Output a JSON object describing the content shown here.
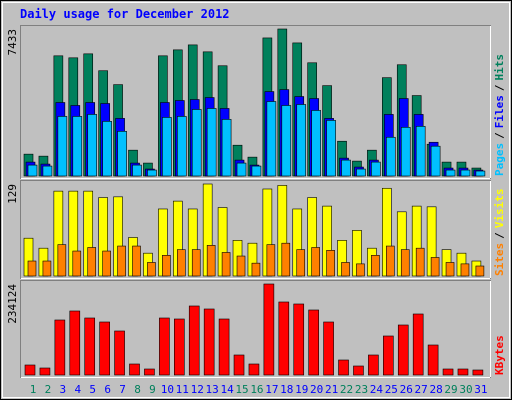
{
  "chart_data": {
    "type": "bar",
    "title": "Daily usage for December 2012",
    "categories": [
      "1",
      "2",
      "3",
      "4",
      "5",
      "6",
      "7",
      "8",
      "9",
      "10",
      "11",
      "12",
      "13",
      "14",
      "15",
      "16",
      "17",
      "18",
      "19",
      "20",
      "21",
      "22",
      "23",
      "24",
      "25",
      "26",
      "27",
      "28",
      "29",
      "30",
      "31"
    ],
    "category_color": "#0000ff",
    "highlight_color": "#00805c",
    "highlight_indices": [
      0,
      1,
      7,
      8,
      14,
      15,
      21,
      22,
      28,
      29
    ],
    "legend_separator": "/",
    "panels": [
      {
        "ylim": [
          0,
          7433
        ],
        "yticks": [
          7433
        ],
        "series": [
          {
            "name": "Hits",
            "color": "#00805c",
            "values": [
              1105,
              1004,
              6077,
              5976,
              6177,
              5323,
              4620,
              1306,
              653,
              6077,
              6378,
              6629,
              6278,
              5574,
              1557,
              954,
              6981,
              7433,
              6729,
              5725,
              4570,
              1758,
              753,
              1306,
              4972,
              5625,
              4068,
              1607,
              703,
              703,
              402
            ]
          },
          {
            "name": "Files",
            "color": "#0000ff",
            "values": [
              703,
              603,
              3716,
              3566,
              3716,
              3666,
              2913,
              653,
              352,
              3716,
              3817,
              3867,
              3967,
              3415,
              804,
              552,
              4269,
              4369,
              4018,
              3917,
              2913,
              904,
              452,
              804,
              3114,
              3917,
              3114,
              1707,
              402,
              402,
              301
            ]
          },
          {
            "name": "Pages",
            "color": "#00c0ff",
            "values": [
              552,
              502,
              3013,
              3013,
              3114,
              2762,
              2260,
              552,
              301,
              2963,
              3013,
              3365,
              3415,
              2863,
              653,
              502,
              3767,
              3566,
              3616,
              3315,
              2812,
              804,
              352,
              703,
              1959,
              2461,
              2511,
              1507,
              301,
              301,
              251
            ]
          }
        ]
      },
      {
        "ylim": [
          0,
          129
        ],
        "yticks": [
          129
        ],
        "series": [
          {
            "name": "Visits",
            "color": "#ffff00",
            "values": [
              53,
              39,
              119,
              119,
              119,
              110,
              111,
              54,
              32,
              94,
              105,
              94,
              129,
              96,
              50,
              46,
              122,
              127,
              94,
              110,
              98,
              50,
              64,
              39,
              123,
              90,
              98,
              97,
              37,
              32,
              21
            ]
          },
          {
            "name": "Sites",
            "color": "#ff8000",
            "values": [
              21,
              21,
              44,
              35,
              40,
              35,
              42,
              42,
              19,
              29,
              37,
              37,
              43,
              33,
              28,
              18,
              44,
              46,
              37,
              40,
              36,
              19,
              17,
              29,
              42,
              37,
              39,
              26,
              19,
              17,
              14
            ]
          }
        ]
      },
      {
        "ylim": [
          0,
          234124
        ],
        "yticks": [
          234124
        ],
        "series": [
          {
            "name": "KBytes",
            "color": "#ff0000",
            "values": [
              25730,
              18011,
              141515,
              164672,
              146661,
              136369,
              113212,
              28303,
              15438,
              146661,
              144088,
              177537,
              169818,
              144088,
              51460,
              28303,
              234124,
              187829,
              182683,
              167245,
              136369,
              38595,
              23157,
              51460,
              100347,
              128650,
              156953,
              77190,
              15438,
              15438,
              12865
            ]
          }
        ]
      }
    ]
  }
}
